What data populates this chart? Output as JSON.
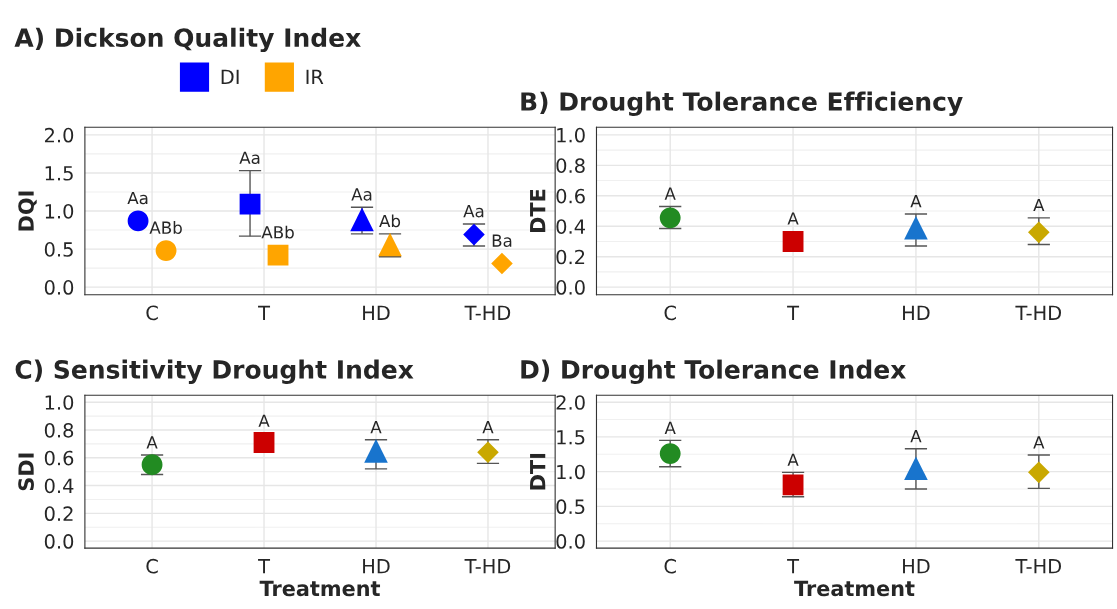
{
  "chart_data": [
    {
      "type": "scatter",
      "title": "A) Dickson Quality Index",
      "ylabel": "DQI",
      "categories": [
        "C",
        "T",
        "HD",
        "T-HD"
      ],
      "ylim": [
        -0.1,
        2.1
      ],
      "yticks": [
        {
          "value": 0,
          "label": "0.0"
        },
        {
          "value": 0.5,
          "label": "0.5"
        },
        {
          "value": 1,
          "label": "1.0"
        },
        {
          "value": 1.5,
          "label": "1.5"
        },
        {
          "value": 2,
          "label": "2.0"
        }
      ],
      "grid": true,
      "legend": "top",
      "tick_labels": "xy",
      "series": [
        {
          "name": "DI",
          "color": "#0000ff",
          "values": [
            0.87,
            1.09,
            0.89,
            0.69
          ],
          "errors": [
            null,
            [
              0.67,
              1.53
            ],
            [
              0.7,
              1.05
            ],
            [
              0.54,
              0.83
            ]
          ],
          "value_labels": [
            "Aa",
            "Aa",
            "Aa",
            "Aa"
          ]
        },
        {
          "name": "IR",
          "color": "#ffa500",
          "values": [
            0.48,
            0.42,
            0.56,
            0.31
          ],
          "errors": [
            null,
            null,
            [
              0.4,
              0.7
            ],
            null
          ],
          "value_labels": [
            "ABb",
            "ABb",
            "Ab",
            "Ba"
          ]
        }
      ]
    },
    {
      "type": "scatter",
      "title": "B) Drought Tolerance Efficiency",
      "ylabel": "DTE",
      "categories": [
        "C",
        "T",
        "HD",
        "T-HD"
      ],
      "ylim": [
        -0.05,
        1.05
      ],
      "yticks": [
        {
          "value": 0,
          "label": "0.0"
        },
        {
          "value": 0.2,
          "label": "0.2"
        },
        {
          "value": 0.4,
          "label": "0.4"
        },
        {
          "value": 0.6,
          "label": "0.6"
        },
        {
          "value": 0.8,
          "label": "0.8"
        },
        {
          "value": 1,
          "label": "1.0"
        }
      ],
      "grid": true,
      "tick_labels": "xy",
      "series": [
        {
          "colors": [
            "#228b22",
            "#cc0000",
            "#1874cd",
            "#c9a800"
          ],
          "values": [
            0.455,
            0.3,
            0.39,
            0.36
          ],
          "errors": [
            [
              0.385,
              0.53
            ],
            null,
            [
              0.27,
              0.48
            ],
            [
              0.28,
              0.455
            ]
          ],
          "value_labels": [
            "A",
            "A",
            "A",
            "A"
          ]
        }
      ]
    },
    {
      "type": "scatter",
      "title": "C) Sensitivity Drought Index",
      "ylabel": "SDI",
      "xlabel": "Treatment",
      "categories": [
        "C",
        "T",
        "HD",
        "T-HD"
      ],
      "ylim": [
        -0.05,
        1.05
      ],
      "yticks": [
        {
          "value": 0,
          "label": "0.0"
        },
        {
          "value": 0.2,
          "label": "0.2"
        },
        {
          "value": 0.4,
          "label": "0.4"
        },
        {
          "value": 0.6,
          "label": "0.6"
        },
        {
          "value": 0.8,
          "label": "0.8"
        },
        {
          "value": 1,
          "label": "1.0"
        }
      ],
      "grid": true,
      "series": [
        {
          "colors": [
            "#228b22",
            "#cc0000",
            "#1874cd",
            "#c9a800"
          ],
          "values": [
            0.55,
            0.71,
            0.65,
            0.64
          ],
          "errors": [
            [
              0.48,
              0.62
            ],
            null,
            [
              0.52,
              0.73
            ],
            [
              0.56,
              0.73
            ]
          ],
          "value_labels": [
            "A",
            "A",
            "A",
            "A"
          ]
        }
      ]
    },
    {
      "type": "scatter",
      "title": "D) Drought Tolerance Index",
      "ylabel": "DTI",
      "xlabel": "Treatment",
      "categories": [
        "C",
        "T",
        "HD",
        "T-HD"
      ],
      "ylim": [
        -0.1,
        2.1
      ],
      "yticks": [
        {
          "value": 0,
          "label": "0.0"
        },
        {
          "value": 0.5,
          "label": "0.5"
        },
        {
          "value": 1,
          "label": "1.0"
        },
        {
          "value": 1.5,
          "label": "1.5"
        },
        {
          "value": 2,
          "label": "2.0"
        }
      ],
      "grid": true,
      "series": [
        {
          "colors": [
            "#228b22",
            "#cc0000",
            "#1874cd",
            "#c9a800"
          ],
          "values": [
            1.26,
            0.81,
            1.05,
            0.99
          ],
          "errors": [
            [
              1.07,
              1.45
            ],
            [
              0.64,
              0.99
            ],
            [
              0.75,
              1.33
            ],
            [
              0.76,
              1.24
            ]
          ],
          "value_labels": [
            "A",
            "A",
            "A",
            "A"
          ]
        }
      ]
    }
  ]
}
